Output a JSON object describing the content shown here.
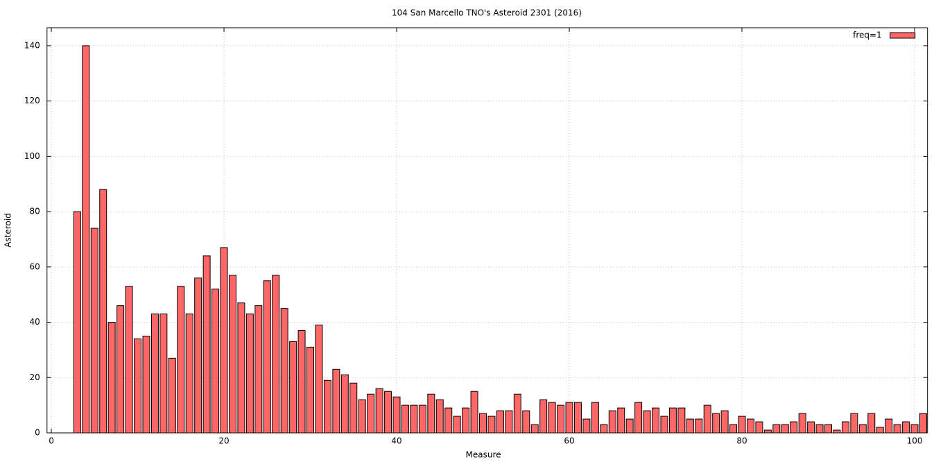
{
  "chart_data": {
    "type": "bar",
    "title": "104 San Marcello TNO's Asteroid 2301 (2016)",
    "x_label": "Measure",
    "y_label": "Asteroid",
    "x": [
      3,
      4,
      5,
      6,
      7,
      8,
      9,
      10,
      11,
      12,
      13,
      14,
      15,
      16,
      17,
      18,
      19,
      20,
      21,
      22,
      23,
      24,
      25,
      26,
      27,
      28,
      29,
      30,
      31,
      32,
      33,
      34,
      35,
      36,
      37,
      38,
      39,
      40,
      41,
      42,
      43,
      44,
      45,
      46,
      47,
      48,
      49,
      50,
      51,
      52,
      53,
      54,
      55,
      56,
      57,
      58,
      59,
      60,
      61,
      62,
      63,
      64,
      65,
      66,
      67,
      68,
      69,
      70,
      71,
      72,
      73,
      74,
      75,
      76,
      77,
      78,
      79,
      80,
      81,
      82,
      83,
      84,
      85,
      86,
      87,
      88,
      89,
      90,
      91,
      92,
      93,
      94,
      95,
      96,
      97,
      98,
      99,
      100,
      101
    ],
    "series": [
      {
        "name": "freq=1",
        "color": "#ff6666",
        "values": [
          80,
          140,
          74,
          88,
          40,
          46,
          53,
          34,
          35,
          43,
          43,
          27,
          53,
          43,
          56,
          64,
          52,
          67,
          57,
          47,
          43,
          46,
          55,
          57,
          45,
          33,
          37,
          31,
          39,
          19,
          23,
          21,
          18,
          12,
          14,
          16,
          15,
          13,
          10,
          10,
          10,
          14,
          12,
          9,
          6,
          9,
          15,
          7,
          6,
          8,
          8,
          14,
          8,
          3,
          12,
          11,
          10,
          11,
          11,
          5,
          11,
          3,
          8,
          9,
          5,
          11,
          8,
          9,
          6,
          9,
          9,
          5,
          5,
          10,
          7,
          8,
          3,
          6,
          5,
          4,
          1,
          3,
          3,
          4,
          7,
          4,
          3,
          3,
          1,
          4,
          7,
          3,
          7,
          2,
          5,
          3,
          4,
          3,
          7
        ]
      }
    ],
    "xlim": [
      -0.5,
      101.5
    ],
    "xticks": [
      0,
      20,
      40,
      60,
      80,
      100
    ],
    "ylim": [
      0,
      146.5
    ],
    "yticks": [
      0,
      20,
      40,
      60,
      80,
      100,
      120,
      140
    ],
    "grid": true,
    "legend": "top-right"
  }
}
